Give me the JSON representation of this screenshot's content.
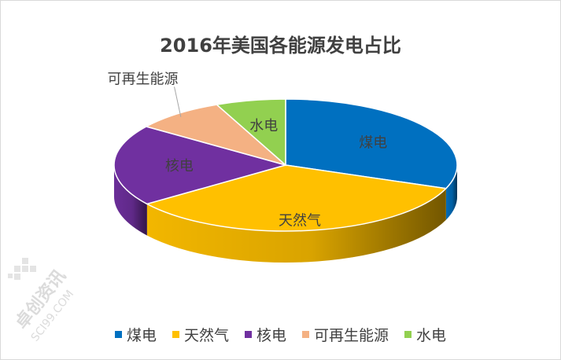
{
  "chart_data": {
    "type": "pie",
    "title": "2016年美国各能源发电占比",
    "categories": [
      "煤电",
      "天然气",
      "核电",
      "可再生能源",
      "水电"
    ],
    "values": [
      30.4,
      33.8,
      19.7,
      8.4,
      6.5
    ],
    "unit": "%",
    "colors": [
      "#0070C0",
      "#FFC000",
      "#7030A0",
      "#F4B183",
      "#92D050"
    ],
    "style": "3d",
    "legend_position": "bottom"
  },
  "watermark": {
    "text": "卓创资讯",
    "subtext": "SCI99.COM"
  }
}
